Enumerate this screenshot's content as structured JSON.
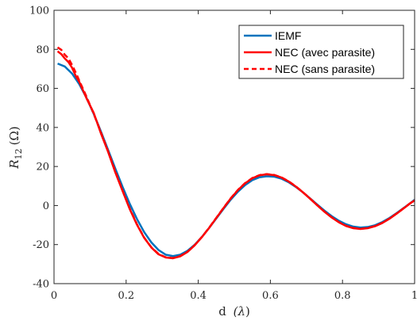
{
  "chart_data": {
    "type": "line",
    "xlabel": "d (λ)",
    "ylabel": "R12 (Ω)",
    "ylabel_main": "R",
    "ylabel_sub": "12",
    "ylabel_unit": "(Ω)",
    "xlabel_main": "d",
    "xlabel_unit": "(λ)",
    "xlim": [
      0,
      1
    ],
    "ylim": [
      -40,
      100
    ],
    "xticks": [
      0,
      0.2,
      0.4,
      0.6,
      0.8,
      1
    ],
    "xtick_labels": [
      "0",
      "0.2",
      "0.4",
      "0.6",
      "0.8",
      "1"
    ],
    "yticks": [
      -40,
      -20,
      0,
      20,
      40,
      60,
      80,
      100
    ],
    "ytick_labels": [
      "-40",
      "-20",
      "0",
      "20",
      "40",
      "60",
      "80",
      "100"
    ],
    "grid": false,
    "legend_position": "top-right",
    "series": [
      {
        "name": "IEMF",
        "color": "#0072BD",
        "style": "solid",
        "x": [
          0.01,
          0.03,
          0.05,
          0.07,
          0.09,
          0.11,
          0.13,
          0.15,
          0.17,
          0.19,
          0.21,
          0.23,
          0.25,
          0.27,
          0.29,
          0.31,
          0.33,
          0.35,
          0.37,
          0.39,
          0.41,
          0.43,
          0.45,
          0.47,
          0.49,
          0.51,
          0.53,
          0.55,
          0.57,
          0.59,
          0.61,
          0.63,
          0.65,
          0.67,
          0.69,
          0.71,
          0.73,
          0.75,
          0.77,
          0.79,
          0.81,
          0.83,
          0.85,
          0.87,
          0.89,
          0.91,
          0.93,
          0.95,
          0.97,
          0.99,
          1.0
        ],
        "y": [
          72.7,
          71.2,
          67.6,
          62.2,
          55.2,
          47.0,
          38.0,
          28.5,
          18.9,
          9.6,
          0.9,
          -6.9,
          -13.6,
          -18.9,
          -22.8,
          -25.2,
          -25.9,
          -25.2,
          -23.2,
          -20.1,
          -16.1,
          -11.5,
          -6.6,
          -1.7,
          3.0,
          7.1,
          10.5,
          13.0,
          14.5,
          15.0,
          14.8,
          13.8,
          12.0,
          9.6,
          6.8,
          3.7,
          0.5,
          -2.6,
          -5.4,
          -7.8,
          -9.6,
          -10.8,
          -11.3,
          -11.0,
          -10.1,
          -8.5,
          -6.4,
          -3.9,
          -1.2,
          1.5,
          3.0
        ]
      },
      {
        "name": "NEC (avec parasite)",
        "color": "#FF0000",
        "style": "solid",
        "x": [
          0.01,
          0.02,
          0.03,
          0.04,
          0.05,
          0.06,
          0.07,
          0.09,
          0.11,
          0.13,
          0.15,
          0.17,
          0.19,
          0.21,
          0.23,
          0.25,
          0.27,
          0.29,
          0.31,
          0.33,
          0.35,
          0.37,
          0.39,
          0.41,
          0.43,
          0.45,
          0.47,
          0.49,
          0.51,
          0.53,
          0.55,
          0.57,
          0.59,
          0.61,
          0.63,
          0.65,
          0.67,
          0.69,
          0.71,
          0.73,
          0.75,
          0.77,
          0.79,
          0.81,
          0.83,
          0.85,
          0.87,
          0.89,
          0.91,
          0.93,
          0.95,
          0.97,
          0.99,
          1.0
        ],
        "y": [
          79.0,
          77.6,
          75.3,
          73.5,
          70.6,
          66.5,
          63.4,
          55.0,
          47.5,
          37.0,
          27.5,
          17.0,
          7.5,
          -1.8,
          -9.8,
          -16.5,
          -21.5,
          -25.0,
          -26.6,
          -27.0,
          -26.0,
          -23.8,
          -20.4,
          -16.2,
          -11.5,
          -6.4,
          -1.3,
          3.6,
          7.9,
          11.4,
          14.0,
          15.5,
          16.0,
          15.6,
          14.4,
          12.4,
          9.8,
          6.8,
          3.5,
          0.1,
          -3.2,
          -6.1,
          -8.6,
          -10.5,
          -11.6,
          -12.0,
          -11.6,
          -10.6,
          -9.0,
          -6.8,
          -4.2,
          -1.4,
          1.4,
          2.6
        ]
      },
      {
        "name": "NEC (sans parasite)",
        "color": "#FF0000",
        "style": "dashed",
        "x": [
          0.01,
          0.02,
          0.03,
          0.04,
          0.05,
          0.06,
          0.07,
          0.09,
          0.11,
          0.13,
          0.15,
          0.17,
          0.19,
          0.21,
          0.23,
          0.25,
          0.27,
          0.29,
          0.31,
          0.33,
          0.35,
          0.37,
          0.39,
          0.41,
          0.43,
          0.45,
          0.47,
          0.49,
          0.51,
          0.53,
          0.55,
          0.57,
          0.59,
          0.61,
          0.63,
          0.65,
          0.67,
          0.69,
          0.71,
          0.73,
          0.75,
          0.77,
          0.79,
          0.81,
          0.83,
          0.85,
          0.87,
          0.89,
          0.91,
          0.93,
          0.95,
          0.97,
          0.99,
          1.0
        ],
        "y": [
          81.0,
          79.8,
          77.2,
          75.4,
          72.0,
          68.2,
          64.0,
          55.8,
          47.0,
          37.5,
          27.8,
          17.5,
          7.8,
          -1.5,
          -9.6,
          -16.4,
          -21.4,
          -24.8,
          -26.5,
          -26.9,
          -25.9,
          -23.7,
          -20.3,
          -16.1,
          -11.4,
          -6.3,
          -1.2,
          3.7,
          8.0,
          11.5,
          14.1,
          15.6,
          16.1,
          15.7,
          14.5,
          12.5,
          9.9,
          6.9,
          3.6,
          0.2,
          -3.1,
          -6.0,
          -8.5,
          -10.4,
          -11.5,
          -11.9,
          -11.5,
          -10.5,
          -8.9,
          -6.7,
          -4.1,
          -1.3,
          1.5,
          2.7
        ]
      }
    ]
  }
}
